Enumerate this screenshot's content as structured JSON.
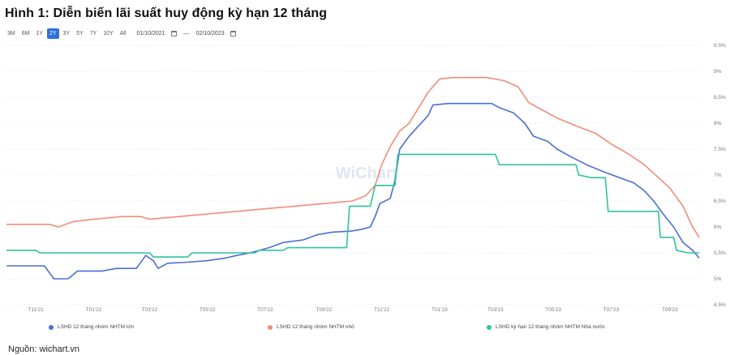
{
  "title": "Hình 1: Diễn biến lãi suất huy động kỳ hạn 12 tháng",
  "toolbar": {
    "ranges": [
      "3M",
      "6M",
      "1Y",
      "2Y",
      "3Y",
      "5Y",
      "7Y",
      "10Y",
      "All"
    ],
    "active_range": "2Y",
    "date_from": "01/10/2021",
    "date_separator": "—",
    "date_to": "02/10/2023"
  },
  "watermark": "WiChart",
  "source": "Nguồn: wichart.vn",
  "colors": {
    "blue": "#4a6fd4",
    "salmon": "#f08c7a",
    "green": "#2ec49a",
    "grid": "#ececec",
    "axis_text": "#777777",
    "active_button": "#2f6fe0"
  },
  "chart_data": {
    "type": "line",
    "title": "",
    "xlabel": "",
    "ylabel": "",
    "ylim": [
      4.5,
      9.5
    ],
    "y_ticks": [
      "4.5%",
      "5%",
      "5.5%",
      "6%",
      "6.5%",
      "7%",
      "7.5%",
      "8%",
      "8.5%",
      "9%",
      "9.5%"
    ],
    "x_ticks": [
      "T11'21",
      "T01'22",
      "T03'22",
      "T05'22",
      "T07'22",
      "T09'22",
      "T11'22",
      "T01'23",
      "T03'23",
      "T05'23",
      "T07'23",
      "T09'23"
    ],
    "legend_position": "bottom",
    "grid": true,
    "series": [
      {
        "name": "LSHD 12 tháng nhóm NHTM lớn",
        "color": "#4a6fd4",
        "points": [
          [
            "2021-10-01",
            5.25
          ],
          [
            "2021-11-10",
            5.25
          ],
          [
            "2021-11-20",
            5.0
          ],
          [
            "2021-12-05",
            5.0
          ],
          [
            "2021-12-15",
            5.15
          ],
          [
            "2022-01-10",
            5.15
          ],
          [
            "2022-01-25",
            5.2
          ],
          [
            "2022-02-15",
            5.2
          ],
          [
            "2022-02-25",
            5.45
          ],
          [
            "2022-03-05",
            5.35
          ],
          [
            "2022-03-10",
            5.2
          ],
          [
            "2022-03-20",
            5.3
          ],
          [
            "2022-04-10",
            5.32
          ],
          [
            "2022-05-01",
            5.35
          ],
          [
            "2022-05-20",
            5.4
          ],
          [
            "2022-06-01",
            5.45
          ],
          [
            "2022-06-15",
            5.5
          ],
          [
            "2022-07-05",
            5.6
          ],
          [
            "2022-07-20",
            5.7
          ],
          [
            "2022-08-10",
            5.75
          ],
          [
            "2022-08-25",
            5.85
          ],
          [
            "2022-09-10",
            5.9
          ],
          [
            "2022-09-30",
            5.92
          ],
          [
            "2022-10-10",
            5.95
          ],
          [
            "2022-10-20",
            6.0
          ],
          [
            "2022-10-25",
            6.2
          ],
          [
            "2022-10-30",
            6.45
          ],
          [
            "2022-11-10",
            6.55
          ],
          [
            "2022-11-15",
            6.9
          ],
          [
            "2022-11-20",
            7.5
          ],
          [
            "2022-11-30",
            7.75
          ],
          [
            "2022-12-10",
            7.95
          ],
          [
            "2022-12-20",
            8.15
          ],
          [
            "2022-12-25",
            8.35
          ],
          [
            "2023-01-10",
            8.38
          ],
          [
            "2023-02-01",
            8.38
          ],
          [
            "2023-02-25",
            8.38
          ],
          [
            "2023-03-05",
            8.3
          ],
          [
            "2023-03-20",
            8.2
          ],
          [
            "2023-04-01",
            8.0
          ],
          [
            "2023-04-10",
            7.75
          ],
          [
            "2023-04-25",
            7.65
          ],
          [
            "2023-05-05",
            7.5
          ],
          [
            "2023-05-20",
            7.35
          ],
          [
            "2023-06-05",
            7.2
          ],
          [
            "2023-06-25",
            7.05
          ],
          [
            "2023-07-10",
            6.95
          ],
          [
            "2023-07-25",
            6.85
          ],
          [
            "2023-08-05",
            6.7
          ],
          [
            "2023-08-15",
            6.5
          ],
          [
            "2023-08-25",
            6.25
          ],
          [
            "2023-09-05",
            6.0
          ],
          [
            "2023-09-15",
            5.7
          ],
          [
            "2023-09-25",
            5.55
          ],
          [
            "2023-10-02",
            5.4
          ]
        ]
      },
      {
        "name": "LSHD 12 tháng nhóm NHTM nhỏ",
        "color": "#f08c7a",
        "points": [
          [
            "2021-10-01",
            6.05
          ],
          [
            "2021-11-15",
            6.05
          ],
          [
            "2021-11-25",
            6.0
          ],
          [
            "2021-12-10",
            6.1
          ],
          [
            "2022-01-01",
            6.15
          ],
          [
            "2022-02-01",
            6.2
          ],
          [
            "2022-02-20",
            6.2
          ],
          [
            "2022-03-01",
            6.15
          ],
          [
            "2022-04-01",
            6.2
          ],
          [
            "2022-05-01",
            6.25
          ],
          [
            "2022-06-01",
            6.3
          ],
          [
            "2022-07-01",
            6.35
          ],
          [
            "2022-08-01",
            6.4
          ],
          [
            "2022-09-01",
            6.45
          ],
          [
            "2022-10-01",
            6.5
          ],
          [
            "2022-10-15",
            6.6
          ],
          [
            "2022-10-25",
            6.8
          ],
          [
            "2022-11-01",
            7.2
          ],
          [
            "2022-11-10",
            7.55
          ],
          [
            "2022-11-20",
            7.85
          ],
          [
            "2022-11-30",
            8.0
          ],
          [
            "2022-12-10",
            8.3
          ],
          [
            "2022-12-20",
            8.6
          ],
          [
            "2023-01-01",
            8.85
          ],
          [
            "2023-01-15",
            8.88
          ],
          [
            "2023-02-01",
            8.88
          ],
          [
            "2023-02-20",
            8.88
          ],
          [
            "2023-03-10",
            8.82
          ],
          [
            "2023-03-25",
            8.7
          ],
          [
            "2023-04-05",
            8.4
          ],
          [
            "2023-04-20",
            8.25
          ],
          [
            "2023-05-05",
            8.1
          ],
          [
            "2023-05-25",
            7.95
          ],
          [
            "2023-06-15",
            7.8
          ],
          [
            "2023-07-01",
            7.6
          ],
          [
            "2023-07-20",
            7.4
          ],
          [
            "2023-08-05",
            7.2
          ],
          [
            "2023-08-20",
            6.95
          ],
          [
            "2023-09-01",
            6.75
          ],
          [
            "2023-09-15",
            6.4
          ],
          [
            "2023-09-25",
            6.0
          ],
          [
            "2023-10-02",
            5.8
          ]
        ]
      },
      {
        "name": "LSHD kỳ hạn 12 tháng nhóm NHTM Nhà nước",
        "color": "#2ec49a",
        "points": [
          [
            "2021-10-01",
            5.55
          ],
          [
            "2021-11-01",
            5.55
          ],
          [
            "2021-11-05",
            5.5
          ],
          [
            "2022-03-01",
            5.5
          ],
          [
            "2022-03-05",
            5.42
          ],
          [
            "2022-04-10",
            5.42
          ],
          [
            "2022-04-15",
            5.5
          ],
          [
            "2022-06-20",
            5.5
          ],
          [
            "2022-06-25",
            5.55
          ],
          [
            "2022-07-20",
            5.55
          ],
          [
            "2022-07-25",
            5.6
          ],
          [
            "2022-09-25",
            5.6
          ],
          [
            "2022-09-28",
            6.4
          ],
          [
            "2022-10-20",
            6.4
          ],
          [
            "2022-10-25",
            6.8
          ],
          [
            "2022-11-15",
            6.8
          ],
          [
            "2022-11-18",
            7.4
          ],
          [
            "2023-03-01",
            7.4
          ],
          [
            "2023-03-05",
            7.2
          ],
          [
            "2023-05-25",
            7.2
          ],
          [
            "2023-05-28",
            7.0
          ],
          [
            "2023-06-10",
            6.95
          ],
          [
            "2023-06-25",
            6.95
          ],
          [
            "2023-06-28",
            6.3
          ],
          [
            "2023-08-20",
            6.3
          ],
          [
            "2023-08-22",
            5.8
          ],
          [
            "2023-09-05",
            5.8
          ],
          [
            "2023-09-08",
            5.55
          ],
          [
            "2023-09-20",
            5.5
          ],
          [
            "2023-10-02",
            5.5
          ]
        ]
      }
    ]
  }
}
